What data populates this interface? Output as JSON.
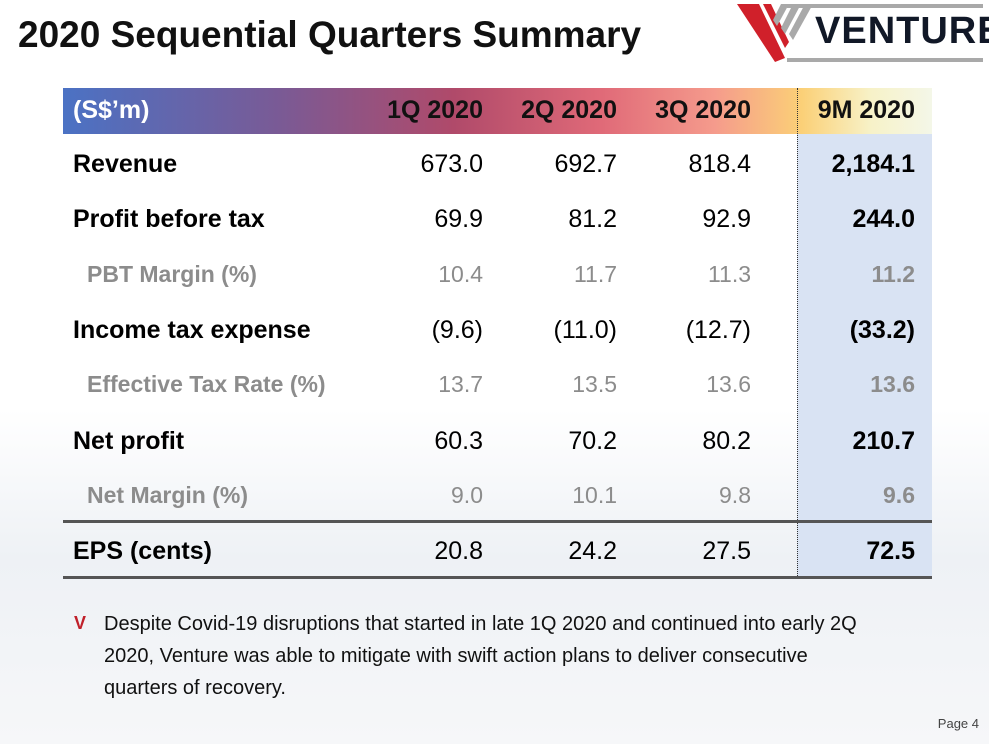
{
  "title": "2020 Sequential Quarters Summary",
  "logo": {
    "text": "VENTURE",
    "colors": {
      "red": "#d0202a",
      "gray": "#a9a9a9"
    }
  },
  "table": {
    "headers": [
      "(S$’m)",
      "1Q 2020",
      "2Q 2020",
      "3Q 2020",
      "9M 2020"
    ],
    "rows": [
      {
        "label": "Revenue",
        "values": [
          "673.0",
          "692.7",
          "818.4",
          "2,184.1"
        ],
        "sub": false
      },
      {
        "label": "Profit before tax",
        "values": [
          "69.9",
          "81.2",
          "92.9",
          "244.0"
        ],
        "sub": false
      },
      {
        "label": "PBT Margin (%)",
        "values": [
          "10.4",
          "11.7",
          "11.3",
          "11.2"
        ],
        "sub": true
      },
      {
        "label": "Income tax expense",
        "values": [
          "(9.6)",
          "(11.0)",
          "(12.7)",
          "(33.2)"
        ],
        "sub": false
      },
      {
        "label": "Effective Tax Rate (%)",
        "values": [
          "13.7",
          "13.5",
          "13.6",
          "13.6"
        ],
        "sub": true
      },
      {
        "label": "Net profit",
        "values": [
          "60.3",
          "70.2",
          "80.2",
          "210.7"
        ],
        "sub": false
      },
      {
        "label": "Net Margin (%)",
        "values": [
          "9.0",
          "10.1",
          "9.8",
          "9.6"
        ],
        "sub": true
      },
      {
        "label": "EPS (cents)",
        "values": [
          "20.8",
          "24.2",
          "27.5",
          "72.5"
        ],
        "sub": false
      }
    ]
  },
  "note": "Despite Covid-19 disruptions that started in late 1Q 2020 and continued into early 2Q 2020, Venture was able to mitigate with swift action plans to deliver consecutive quarters of recovery.",
  "page": "Page 4"
}
